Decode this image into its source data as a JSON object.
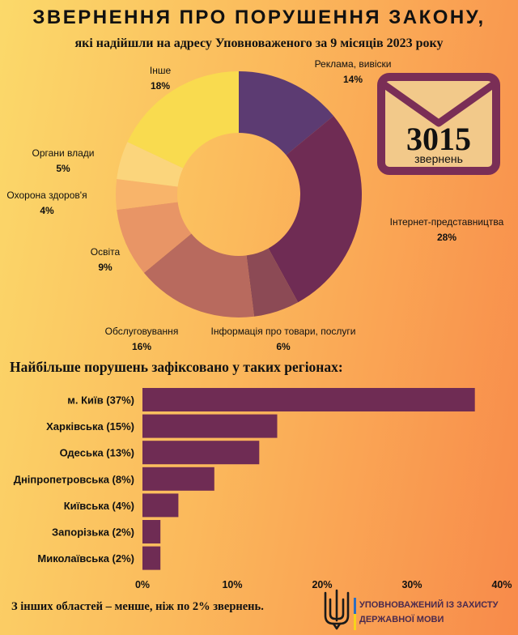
{
  "header": {
    "title": "ЗВЕРНЕННЯ ПРО ПОРУШЕННЯ ЗАКОНУ,",
    "subtitle": "які надійшли на адресу Уповноваженого за 9 місяців 2023 року"
  },
  "envelope": {
    "count": "3015",
    "word": "звернень",
    "color": "#7a2e56",
    "fill": "#f2c98a"
  },
  "chart_data": [
    {
      "type": "pie",
      "donut": true,
      "slices": [
        {
          "label": "Реклама, вивіски",
          "pct": "14%",
          "value": 14,
          "color": "#5c3b72"
        },
        {
          "label": "Інтернет-представництва",
          "pct": "28%",
          "value": 28,
          "color": "#6f2c54"
        },
        {
          "label": "Інформація про товари, послуги",
          "pct": "6%",
          "value": 6,
          "color": "#8c4a55"
        },
        {
          "label": "Обслуговування",
          "pct": "16%",
          "value": 16,
          "color": "#b86a5e"
        },
        {
          "label": "Освіта",
          "pct": "9%",
          "value": 9,
          "color": "#e89566"
        },
        {
          "label": "Охорона здоров'я",
          "pct": "4%",
          "value": 4,
          "color": "#f8b46a"
        },
        {
          "label": "Органи влади",
          "pct": "5%",
          "value": 5,
          "color": "#fbd57c"
        },
        {
          "label": "Інше",
          "pct": "18%",
          "value": 18,
          "color": "#f9db4f"
        }
      ]
    },
    {
      "type": "bar",
      "orientation": "horizontal",
      "title": "Найбільше порушень зафіксовано у таких регіонах:",
      "categories": [
        "м. Київ (37%)",
        "Харківська (15%)",
        "Одеська (13%)",
        "Дніпропетровська (8%)",
        "Київська (4%)",
        "Запорізька (2%)",
        "Миколаївська (2%)"
      ],
      "values": [
        37,
        15,
        13,
        8,
        4,
        2,
        2
      ],
      "xlim": [
        0,
        40
      ],
      "xticks": [
        "0%",
        "10%",
        "20%",
        "30%",
        "40%"
      ],
      "bar_color": "#6f2c54",
      "grid": false
    }
  ],
  "footer": {
    "note": "З інших областей – менше, ніж по 2% звернень.",
    "org_line1": "УПОВНОВАЖЕНИЙ ІЗ ЗАХИСТУ",
    "org_line2": "ДЕРЖАВНОЇ МОВИ",
    "flag_blue": "#2f6fc0",
    "flag_yellow": "#f7d21a"
  }
}
